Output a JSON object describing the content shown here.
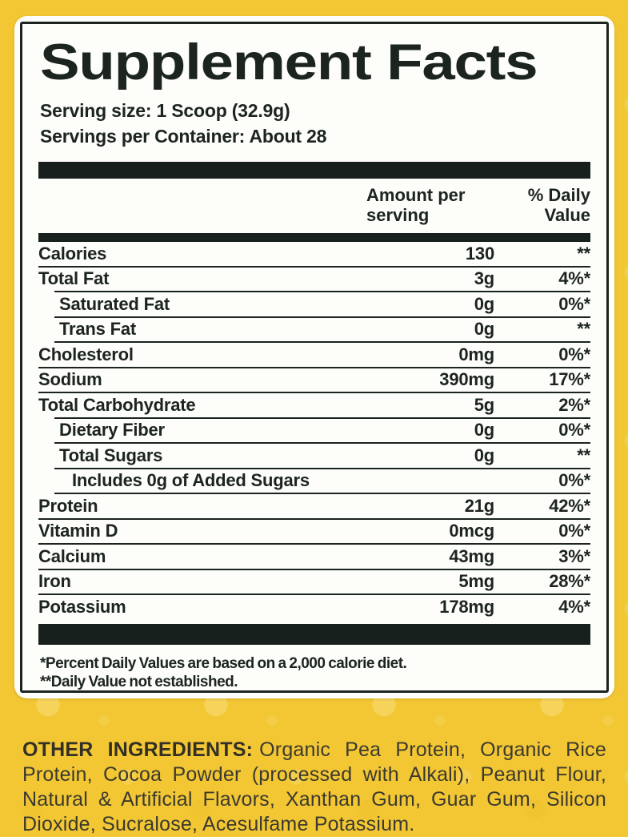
{
  "colors": {
    "background_yellow": "#F2C733",
    "panel_white": "#FDFDFA",
    "ink": "#1C2420",
    "ingredients_ink": "#3B3930"
  },
  "title": "Supplement Facts",
  "serving_size": "Serving size: 1 Scoop (32.9g)",
  "servings_per_container": "Servings per Container: About 28",
  "columns": {
    "amount": "Amount per serving",
    "daily_value": "% Daily Value"
  },
  "rows": [
    {
      "name": "Calories",
      "amount": "130",
      "dv": "**",
      "indent": 0
    },
    {
      "name": "Total Fat",
      "amount": "3g",
      "dv": "4%*",
      "indent": 0
    },
    {
      "name": "Saturated Fat",
      "amount": "0g",
      "dv": "0%*",
      "indent": 1
    },
    {
      "name": "Trans Fat",
      "amount": "0g",
      "dv": "**",
      "indent": 1
    },
    {
      "name": "Cholesterol",
      "amount": "0mg",
      "dv": "0%*",
      "indent": 0
    },
    {
      "name": "Sodium",
      "amount": "390mg",
      "dv": "17%*",
      "indent": 0
    },
    {
      "name": "Total Carbohydrate",
      "amount": "5g",
      "dv": "2%*",
      "indent": 0
    },
    {
      "name": "Dietary Fiber",
      "amount": "0g",
      "dv": "0%*",
      "indent": 1
    },
    {
      "name": "Total Sugars",
      "amount": "0g",
      "dv": "**",
      "indent": 1
    },
    {
      "name": "Includes 0g of Added Sugars",
      "amount": "",
      "dv": "0%*",
      "indent": 2
    },
    {
      "name": "Protein",
      "amount": "21g",
      "dv": "42%*",
      "indent": 0
    },
    {
      "name": "Vitamin D",
      "amount": "0mcg",
      "dv": "0%*",
      "indent": 0
    },
    {
      "name": "Calcium",
      "amount": "43mg",
      "dv": "3%*",
      "indent": 0
    },
    {
      "name": "Iron",
      "amount": "5mg",
      "dv": "28%*",
      "indent": 0
    },
    {
      "name": "Potassium",
      "amount": "178mg",
      "dv": "4%*",
      "indent": 0
    }
  ],
  "footnotes": [
    "*Percent Daily Values are based on a 2,000 calorie diet.",
    "**Daily Value not established."
  ],
  "other_ingredients": {
    "label": "OTHER INGREDIENTS:",
    "text": "Organic Pea Protein, Organic Rice Protein, Cocoa Powder (processed with Alkali), Peanut Flour, Natural & Artificial Flavors, Xanthan Gum, Guar Gum, Silicon Dioxide, Sucralose, Acesulfame Potassium."
  }
}
